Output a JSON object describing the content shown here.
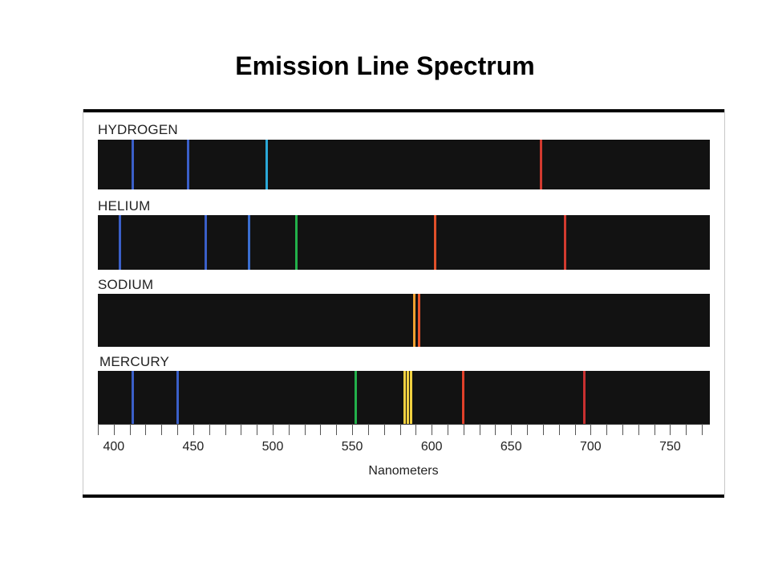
{
  "title": "Emission Line Spectrum",
  "axis": {
    "label": "Nanometers",
    "min": 390,
    "max": 775,
    "tick_step": 10,
    "labels": [
      400,
      450,
      500,
      550,
      600,
      650,
      700,
      750
    ]
  },
  "elements": [
    {
      "name": "HYDROGEN",
      "lines": [
        {
          "nm": 412,
          "color": "#3a5fc8"
        },
        {
          "nm": 447,
          "color": "#3a5fc8"
        },
        {
          "nm": 496,
          "color": "#2aa8d8"
        },
        {
          "nm": 669,
          "color": "#d23a2f"
        }
      ]
    },
    {
      "name": "HELIUM",
      "lines": [
        {
          "nm": 404,
          "color": "#3a5fc8"
        },
        {
          "nm": 458,
          "color": "#3a5fc8"
        },
        {
          "nm": 485,
          "color": "#3a6ed0"
        },
        {
          "nm": 515,
          "color": "#22b04a"
        },
        {
          "nm": 602,
          "color": "#e0502a"
        },
        {
          "nm": 684,
          "color": "#d23a2f"
        }
      ]
    },
    {
      "name": "SODIUM",
      "lines": [
        {
          "nm": 589,
          "color": "#f0a030"
        },
        {
          "nm": 592,
          "color": "#e8552a"
        }
      ]
    },
    {
      "name": "MERCURY",
      "lines": [
        {
          "nm": 412,
          "color": "#3a5fc8"
        },
        {
          "nm": 440,
          "color": "#3a5fc8"
        },
        {
          "nm": 552,
          "color": "#22b04a"
        },
        {
          "nm": 583,
          "color": "#f0d040"
        },
        {
          "nm": 585,
          "color": "#f0d040"
        },
        {
          "nm": 587,
          "color": "#f0d040"
        },
        {
          "nm": 620,
          "color": "#e0402a"
        },
        {
          "nm": 696,
          "color": "#c83030"
        }
      ]
    }
  ]
}
